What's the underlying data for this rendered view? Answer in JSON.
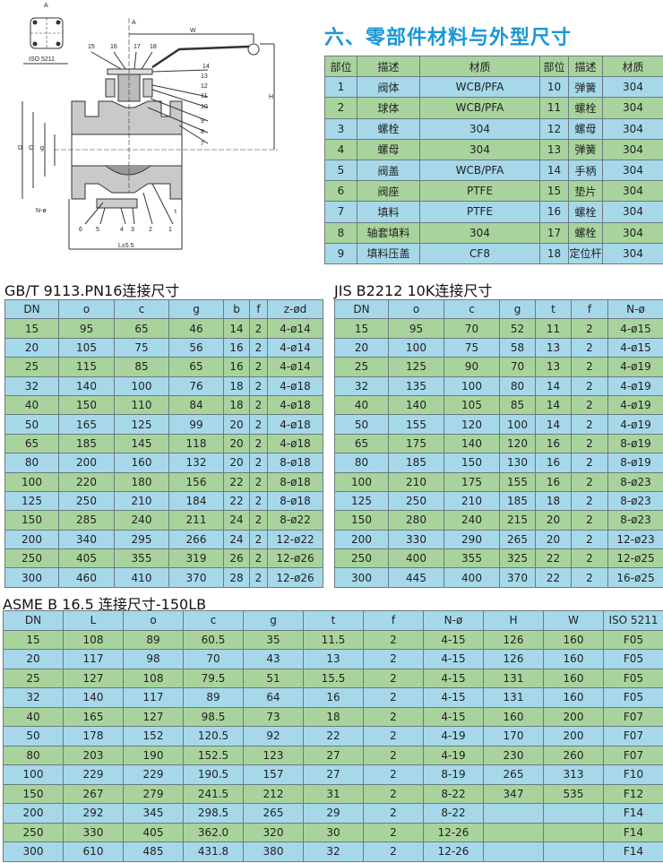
{
  "title": "六、零部件材料与外型尺寸",
  "colors": {
    "title": "#1a97d5",
    "row_blue": "#a6d8ea",
    "row_green": "#a9d39c"
  },
  "diagram": {
    "view_label": "A",
    "flange_label": "ISO 5211",
    "callouts": [
      "1",
      "2",
      "3",
      "4",
      "5",
      "6",
      "7",
      "8",
      "9",
      "10",
      "11",
      "12",
      "13",
      "14",
      "15",
      "16",
      "17",
      "18"
    ],
    "dims": {
      "w": "W",
      "h": "H",
      "l": "L±5.5",
      "nphi": "N-ø",
      "t": "t",
      "d": "D",
      "c": "C",
      "g": "g"
    }
  },
  "materials": {
    "headers": [
      "部位",
      "描述",
      "材质",
      "部位",
      "描述",
      "材质"
    ],
    "rows": [
      [
        "1",
        "阀体",
        "WCB/PFA",
        "10",
        "弹簧",
        "304"
      ],
      [
        "2",
        "球体",
        "WCB/PFA",
        "11",
        "螺栓",
        "304"
      ],
      [
        "3",
        "螺栓",
        "304",
        "12",
        "螺母",
        "304"
      ],
      [
        "4",
        "螺母",
        "304",
        "13",
        "弹簧",
        "304"
      ],
      [
        "5",
        "阀盖",
        "WCB/PFA",
        "14",
        "手柄",
        "304"
      ],
      [
        "6",
        "阀座",
        "PTFE",
        "15",
        "垫片",
        "304"
      ],
      [
        "7",
        "填料",
        "PTFE",
        "16",
        "螺栓",
        "304"
      ],
      [
        "8",
        "轴套填料",
        "304",
        "17",
        "螺栓",
        "304"
      ],
      [
        "9",
        "填料压盖",
        "CF8",
        "18",
        "定位杆",
        "304"
      ]
    ]
  },
  "gb": {
    "title": "GB/T 9113.PN16连接尺寸",
    "headers": [
      "DN",
      "o",
      "c",
      "g",
      "b",
      "f",
      "z-ød"
    ],
    "rows": [
      [
        "15",
        "95",
        "65",
        "46",
        "14",
        "2",
        "4-ø14"
      ],
      [
        "20",
        "105",
        "75",
        "56",
        "16",
        "2",
        "4-ø14"
      ],
      [
        "25",
        "115",
        "85",
        "65",
        "16",
        "2",
        "4-ø14"
      ],
      [
        "32",
        "140",
        "100",
        "76",
        "18",
        "2",
        "4-ø18"
      ],
      [
        "40",
        "150",
        "110",
        "84",
        "18",
        "2",
        "4-ø18"
      ],
      [
        "50",
        "165",
        "125",
        "99",
        "20",
        "2",
        "4-ø18"
      ],
      [
        "65",
        "185",
        "145",
        "118",
        "20",
        "2",
        "4-ø18"
      ],
      [
        "80",
        "200",
        "160",
        "132",
        "20",
        "2",
        "8-ø18"
      ],
      [
        "100",
        "220",
        "180",
        "156",
        "22",
        "2",
        "8-ø18"
      ],
      [
        "125",
        "250",
        "210",
        "184",
        "22",
        "2",
        "8-ø18"
      ],
      [
        "150",
        "285",
        "240",
        "211",
        "24",
        "2",
        "8-ø22"
      ],
      [
        "200",
        "340",
        "295",
        "266",
        "24",
        "2",
        "12-ø22"
      ],
      [
        "250",
        "405",
        "355",
        "319",
        "26",
        "2",
        "12-ø26"
      ],
      [
        "300",
        "460",
        "410",
        "370",
        "28",
        "2",
        "12-ø26"
      ]
    ]
  },
  "jis": {
    "title": "JIS B2212 10K连接尺寸",
    "headers": [
      "DN",
      "o",
      "c",
      "g",
      "t",
      "f",
      "N-ø"
    ],
    "rows": [
      [
        "15",
        "95",
        "70",
        "52",
        "11",
        "2",
        "4-ø15"
      ],
      [
        "20",
        "100",
        "75",
        "58",
        "13",
        "2",
        "4-ø15"
      ],
      [
        "25",
        "125",
        "90",
        "70",
        "13",
        "2",
        "4-ø19"
      ],
      [
        "32",
        "135",
        "100",
        "80",
        "14",
        "2",
        "4-ø19"
      ],
      [
        "40",
        "140",
        "105",
        "85",
        "14",
        "2",
        "4-ø19"
      ],
      [
        "50",
        "155",
        "120",
        "100",
        "14",
        "2",
        "4-ø19"
      ],
      [
        "65",
        "175",
        "140",
        "120",
        "16",
        "2",
        "8-ø19"
      ],
      [
        "80",
        "185",
        "150",
        "130",
        "16",
        "2",
        "8-ø19"
      ],
      [
        "100",
        "210",
        "175",
        "155",
        "16",
        "2",
        "8-ø23"
      ],
      [
        "125",
        "250",
        "210",
        "185",
        "18",
        "2",
        "8-ø23"
      ],
      [
        "150",
        "280",
        "240",
        "215",
        "20",
        "2",
        "8-ø23"
      ],
      [
        "200",
        "330",
        "290",
        "265",
        "20",
        "2",
        "12-ø23"
      ],
      [
        "250",
        "400",
        "355",
        "325",
        "22",
        "2",
        "12-ø25"
      ],
      [
        "300",
        "445",
        "400",
        "370",
        "22",
        "2",
        "16-ø25"
      ]
    ]
  },
  "asme": {
    "title": "ASME B 16.5 连接尺寸-150LB",
    "headers": [
      "DN",
      "L",
      "o",
      "c",
      "g",
      "t",
      "f",
      "N-ø",
      "H",
      "W",
      "ISO 5211"
    ],
    "rows": [
      [
        "15",
        "108",
        "89",
        "60.5",
        "35",
        "11.5",
        "2",
        "4-15",
        "126",
        "160",
        "F05"
      ],
      [
        "20",
        "117",
        "98",
        "70",
        "43",
        "13",
        "2",
        "4-15",
        "126",
        "160",
        "F05"
      ],
      [
        "25",
        "127",
        "108",
        "79.5",
        "51",
        "15.5",
        "2",
        "4-15",
        "131",
        "160",
        "F05"
      ],
      [
        "32",
        "140",
        "117",
        "89",
        "64",
        "16",
        "2",
        "4-15",
        "131",
        "160",
        "F05"
      ],
      [
        "40",
        "165",
        "127",
        "98.5",
        "73",
        "18",
        "2",
        "4-15",
        "160",
        "200",
        "F07"
      ],
      [
        "50",
        "178",
        "152",
        "120.5",
        "92",
        "22",
        "2",
        "4-19",
        "170",
        "200",
        "F07"
      ],
      [
        "80",
        "203",
        "190",
        "152.5",
        "123",
        "27",
        "2",
        "4-19",
        "230",
        "260",
        "F07"
      ],
      [
        "100",
        "229",
        "229",
        "190.5",
        "157",
        "27",
        "2",
        "8-19",
        "265",
        "313",
        "F10"
      ],
      [
        "150",
        "267",
        "279",
        "241.5",
        "212",
        "31",
        "2",
        "8-22",
        "347",
        "535",
        "F12"
      ],
      [
        "200",
        "292",
        "345",
        "298.5",
        "265",
        "29",
        "2",
        "8-22",
        "",
        "",
        "F14"
      ],
      [
        "250",
        "330",
        "405",
        "362.0",
        "320",
        "30",
        "2",
        "12-26",
        "",
        "",
        "F14"
      ],
      [
        "300",
        "610",
        "485",
        "431.8",
        "380",
        "32",
        "2",
        "12-26",
        "",
        "",
        "F14"
      ]
    ]
  }
}
